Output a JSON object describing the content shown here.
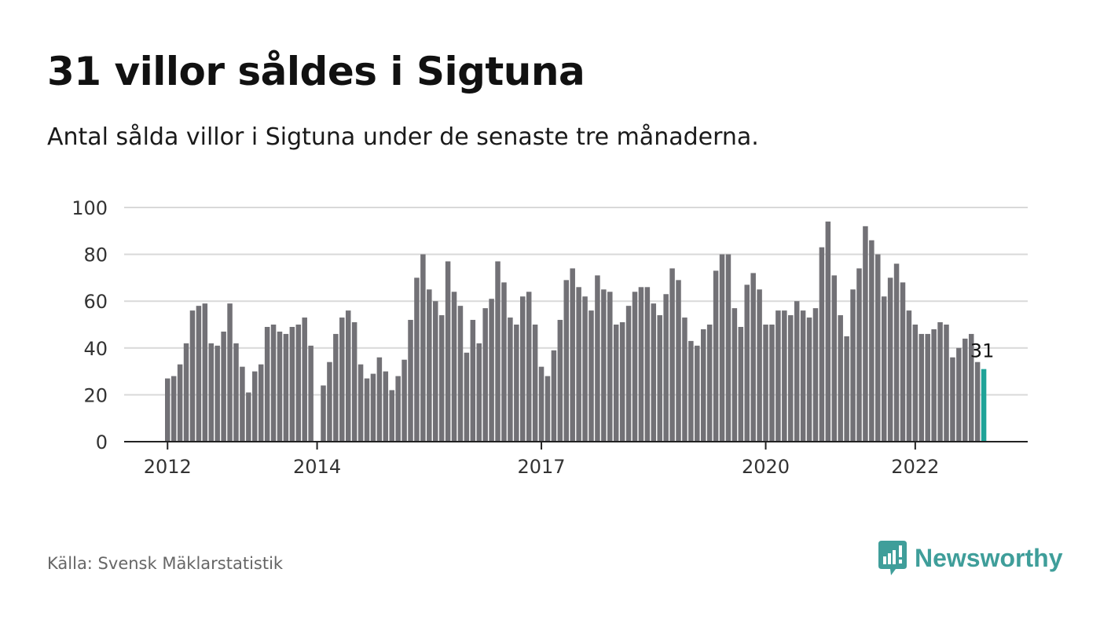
{
  "header": {
    "title": "31 villor såldes i Sigtuna",
    "subtitle": "Antal sålda villor i Sigtuna under de senaste tre månaderna."
  },
  "footer": {
    "source": "Källa: Svensk Mäklarstatistik",
    "brand": "Newsworthy"
  },
  "colors": {
    "bar": "#727176",
    "highlight": "#1fa398",
    "grid": "#d9d9d9",
    "axis": "#222222",
    "brand": "#3f9e9a"
  },
  "chart_data": {
    "type": "bar",
    "title": "31 villor såldes i Sigtuna",
    "subtitle": "Antal sålda villor i Sigtuna under de senaste tre månaderna.",
    "x_start": "2012-01",
    "x_end": "2022-11",
    "x_step": "1 month",
    "values": [
      27,
      28,
      33,
      42,
      56,
      58,
      59,
      42,
      41,
      47,
      59,
      42,
      32,
      21,
      30,
      33,
      49,
      50,
      47,
      46,
      49,
      50,
      53,
      41,
      0,
      24,
      34,
      46,
      53,
      56,
      51,
      33,
      27,
      29,
      36,
      30,
      22,
      28,
      35,
      52,
      70,
      80,
      65,
      60,
      54,
      77,
      64,
      58,
      38,
      52,
      42,
      57,
      61,
      77,
      68,
      53,
      50,
      62,
      64,
      50,
      32,
      28,
      39,
      52,
      69,
      74,
      66,
      62,
      56,
      71,
      65,
      64,
      50,
      51,
      58,
      64,
      66,
      66,
      59,
      54,
      63,
      74,
      69,
      53,
      43,
      41,
      48,
      50,
      73,
      80,
      80,
      57,
      49,
      67,
      72,
      65,
      50,
      50,
      56,
      56,
      54,
      60,
      56,
      53,
      57,
      83,
      94,
      71,
      54,
      45,
      65,
      74,
      92,
      86,
      80,
      62,
      70,
      76,
      68,
      56,
      50,
      46,
      46,
      48,
      51,
      50,
      36,
      40,
      44,
      46,
      34,
      31
    ],
    "highlight_last": true,
    "highlight_label": "31",
    "y_ticks": [
      0,
      20,
      40,
      60,
      80,
      100
    ],
    "x_ticks": [
      {
        "label": "2012",
        "date": "2012-01"
      },
      {
        "label": "2014",
        "date": "2014-01"
      },
      {
        "label": "2017",
        "date": "2017-01"
      },
      {
        "label": "2020",
        "date": "2020-01"
      },
      {
        "label": "2022",
        "date": "2022-01"
      }
    ],
    "ylim": [
      0,
      100
    ],
    "grid": true,
    "legend": "none"
  }
}
